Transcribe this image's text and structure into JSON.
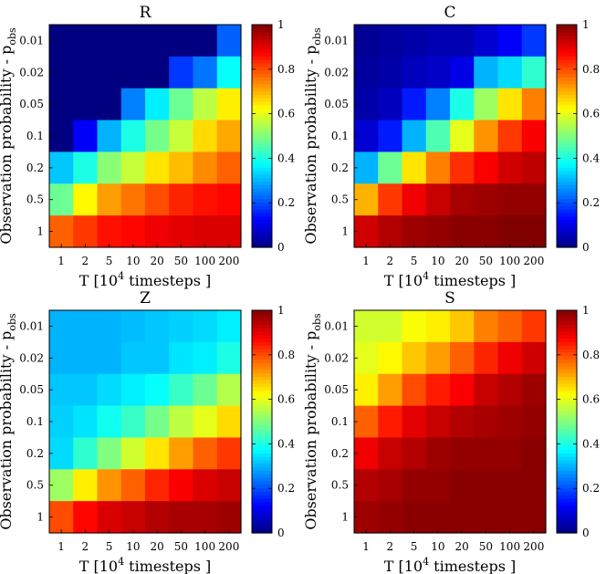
{
  "colorbar_ticks": [
    "0",
    "0.2",
    "0.4",
    "0.6",
    "0.8",
    "1"
  ],
  "chart_data": [
    {
      "type": "heatmap",
      "title": "R",
      "xlabel": "T [10^4 timesteps ]",
      "xlabel_base": "T [10",
      "xlabel_sup": "4",
      "xlabel_tail": " timesteps ]",
      "ylabel_main": "Observation probability - p",
      "ylabel_sub": "obs",
      "x_categories": [
        "1",
        "2",
        "5",
        "10",
        "20",
        "50",
        "100",
        "200"
      ],
      "y_categories": [
        "0.01",
        "0.02",
        "0.05",
        "0.1",
        "0.2",
        "0.5",
        "1"
      ],
      "clim": [
        0,
        1
      ],
      "colormap": "jet",
      "values": [
        [
          0.0,
          0.0,
          0.0,
          0.0,
          0.0,
          0.0,
          0.0,
          0.22
        ],
        [
          0.0,
          0.0,
          0.0,
          0.0,
          0.0,
          0.18,
          0.24,
          0.38
        ],
        [
          0.0,
          0.0,
          0.0,
          0.25,
          0.36,
          0.48,
          0.56,
          0.64
        ],
        [
          0.0,
          0.12,
          0.3,
          0.4,
          0.49,
          0.57,
          0.66,
          0.71
        ],
        [
          0.32,
          0.4,
          0.51,
          0.57,
          0.65,
          0.69,
          0.74,
          0.78
        ],
        [
          0.48,
          0.63,
          0.72,
          0.76,
          0.8,
          0.84,
          0.86,
          0.87
        ],
        [
          0.78,
          0.82,
          0.86,
          0.87,
          0.89,
          0.9,
          0.91,
          0.91
        ]
      ]
    },
    {
      "type": "heatmap",
      "title": "C",
      "xlabel": "T [10^4 timesteps ]",
      "xlabel_base": "T [10",
      "xlabel_sup": "4",
      "xlabel_tail": " timesteps ]",
      "ylabel_main": "Observation probability - p",
      "ylabel_sub": "obs",
      "x_categories": [
        "1",
        "2",
        "5",
        "10",
        "20",
        "50",
        "100",
        "200"
      ],
      "y_categories": [
        "0.01",
        "0.02",
        "0.05",
        "0.1",
        "0.2",
        "0.5",
        "1"
      ],
      "clim": [
        0,
        1
      ],
      "colormap": "jet",
      "values": [
        [
          0.02,
          0.03,
          0.04,
          0.05,
          0.05,
          0.08,
          0.12,
          0.18
        ],
        [
          0.03,
          0.04,
          0.06,
          0.07,
          0.1,
          0.3,
          0.34,
          0.42
        ],
        [
          0.04,
          0.06,
          0.15,
          0.25,
          0.4,
          0.53,
          0.65,
          0.75
        ],
        [
          0.08,
          0.15,
          0.3,
          0.45,
          0.6,
          0.73,
          0.82,
          0.88
        ],
        [
          0.3,
          0.48,
          0.65,
          0.75,
          0.83,
          0.88,
          0.92,
          0.94
        ],
        [
          0.7,
          0.82,
          0.89,
          0.93,
          0.96,
          0.97,
          0.98,
          0.98
        ],
        [
          0.92,
          0.95,
          0.97,
          0.98,
          0.99,
          0.99,
          1.0,
          1.0
        ]
      ]
    },
    {
      "type": "heatmap",
      "title": "Z",
      "xlabel": "T [10^4 timesteps ]",
      "xlabel_base": "T [10",
      "xlabel_sup": "4",
      "xlabel_tail": " timesteps ]",
      "ylabel_main": "Observation probability - p",
      "ylabel_sub": "obs",
      "x_categories": [
        "1",
        "2",
        "5",
        "10",
        "20",
        "50",
        "100",
        "200"
      ],
      "y_categories": [
        "0.01",
        "0.02",
        "0.05",
        "0.1",
        "0.2",
        "0.5",
        "1"
      ],
      "clim": [
        0,
        1
      ],
      "colormap": "jet",
      "values": [
        [
          0.3,
          0.3,
          0.3,
          0.31,
          0.32,
          0.33,
          0.34,
          0.36
        ],
        [
          0.3,
          0.3,
          0.3,
          0.32,
          0.32,
          0.35,
          0.36,
          0.4
        ],
        [
          0.32,
          0.32,
          0.34,
          0.36,
          0.38,
          0.43,
          0.48,
          0.55
        ],
        [
          0.33,
          0.35,
          0.39,
          0.43,
          0.49,
          0.56,
          0.6,
          0.66
        ],
        [
          0.34,
          0.42,
          0.5,
          0.58,
          0.65,
          0.72,
          0.78,
          0.82
        ],
        [
          0.53,
          0.64,
          0.73,
          0.78,
          0.84,
          0.88,
          0.91,
          0.93
        ],
        [
          0.8,
          0.87,
          0.91,
          0.93,
          0.95,
          0.96,
          0.96,
          0.97
        ]
      ]
    },
    {
      "type": "heatmap",
      "title": "S",
      "xlabel": "T [10^4 timesteps ]",
      "xlabel_base": "T [10",
      "xlabel_sup": "4",
      "xlabel_tail": " timesteps ]",
      "ylabel_main": "Observation probability - p",
      "ylabel_sub": "obs",
      "x_categories": [
        "1",
        "2",
        "5",
        "10",
        "20",
        "50",
        "100",
        "200"
      ],
      "y_categories": [
        "0.01",
        "0.02",
        "0.05",
        "0.1",
        "0.2",
        "0.5",
        "1"
      ],
      "clim": [
        0,
        1
      ],
      "colormap": "jet",
      "values": [
        [
          0.58,
          0.58,
          0.62,
          0.64,
          0.68,
          0.75,
          0.78,
          0.82
        ],
        [
          0.6,
          0.63,
          0.68,
          0.72,
          0.78,
          0.84,
          0.89,
          0.92
        ],
        [
          0.64,
          0.72,
          0.8,
          0.85,
          0.88,
          0.93,
          0.95,
          0.97
        ],
        [
          0.78,
          0.85,
          0.9,
          0.93,
          0.95,
          0.96,
          0.97,
          0.98
        ],
        [
          0.89,
          0.93,
          0.95,
          0.97,
          0.98,
          0.98,
          0.98,
          0.99
        ],
        [
          0.95,
          0.96,
          0.98,
          0.98,
          0.99,
          0.99,
          0.99,
          0.99
        ],
        [
          0.97,
          0.98,
          0.99,
          0.99,
          0.99,
          0.99,
          0.99,
          0.99
        ]
      ]
    }
  ]
}
